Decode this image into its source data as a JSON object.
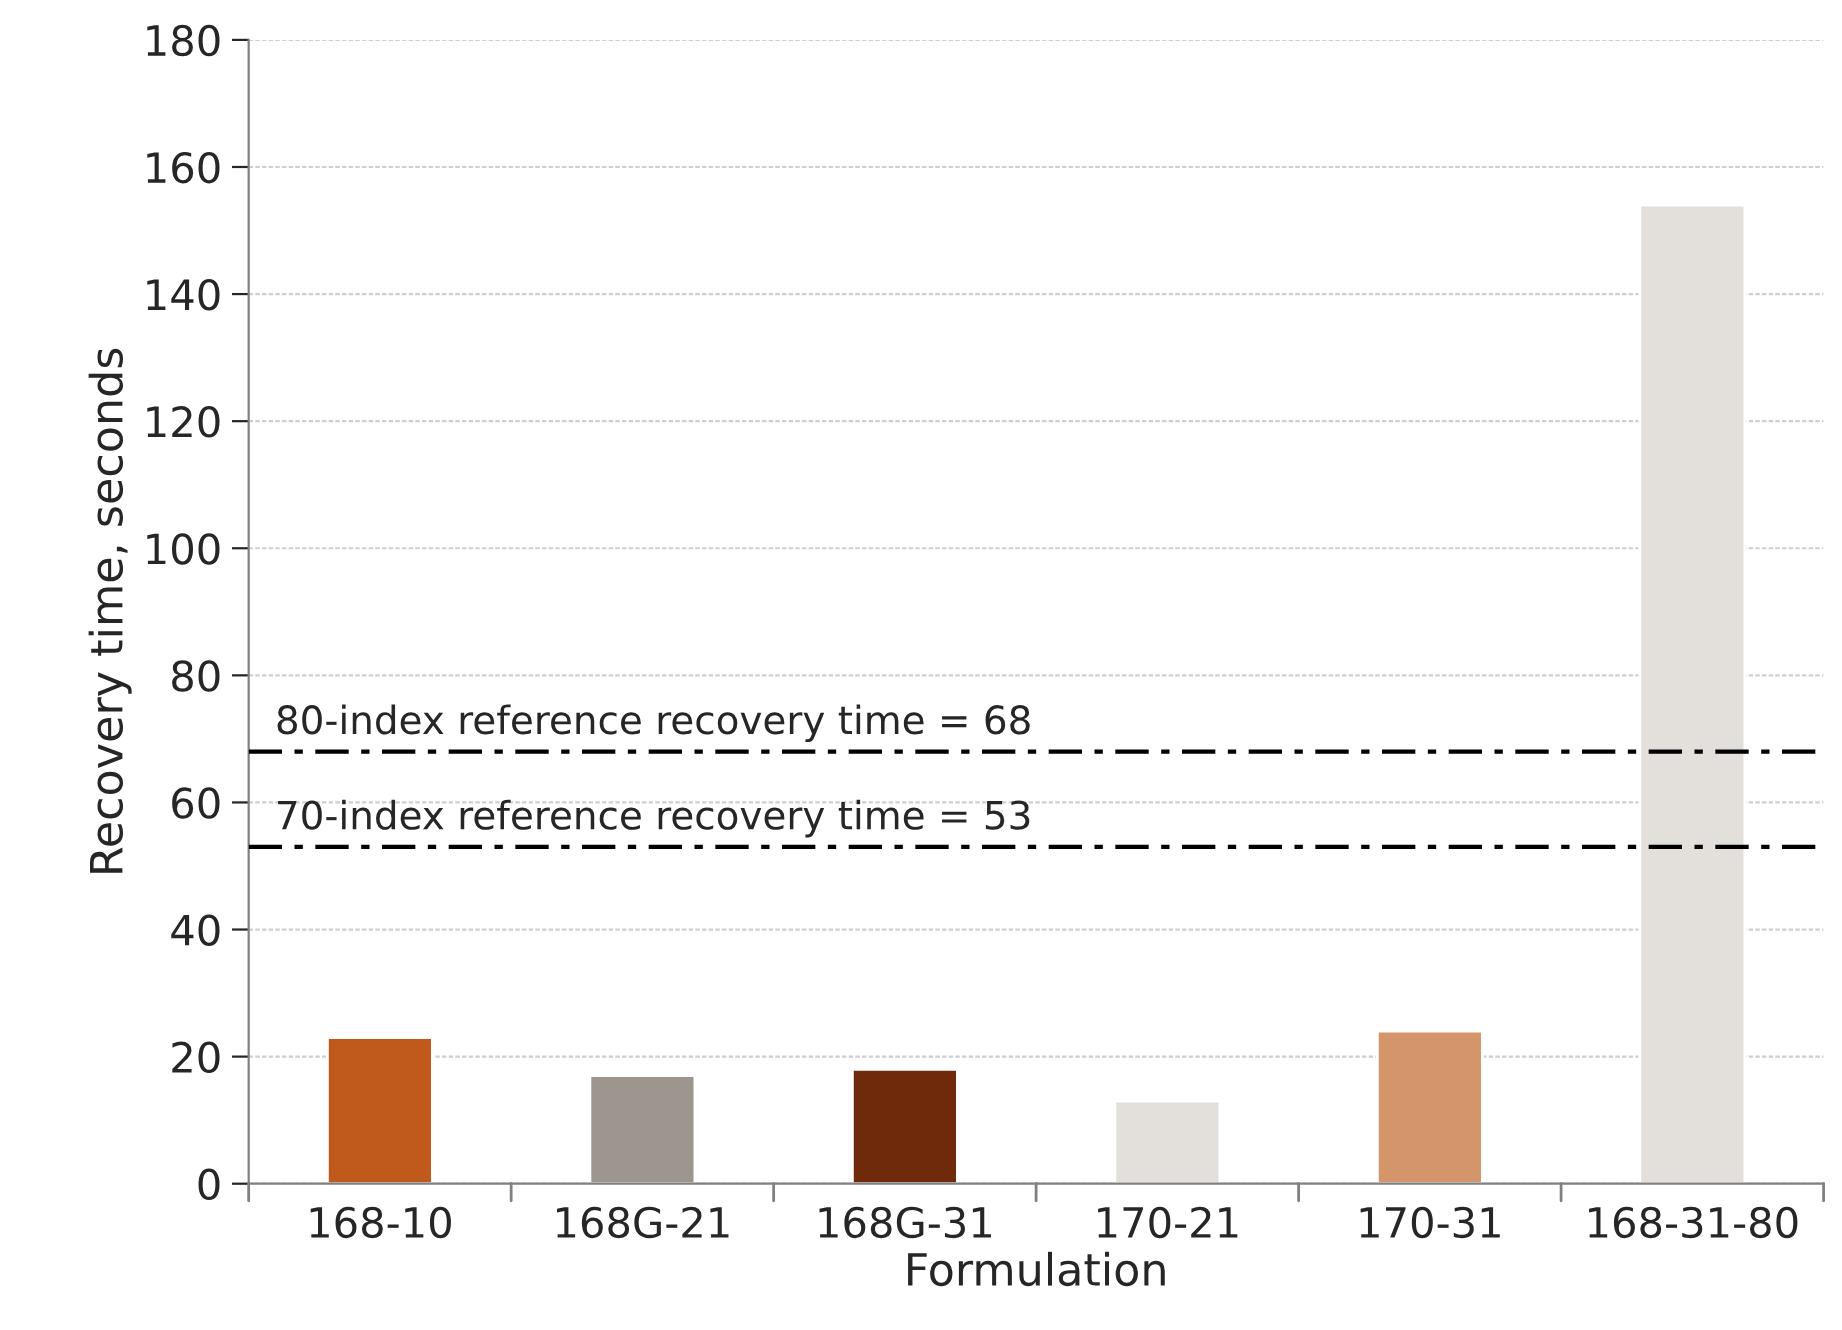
{
  "chart_data": {
    "type": "bar",
    "xlabel": "Formulation",
    "ylabel": "Recovery time, seconds",
    "categories": [
      "168-10",
      "168G-21",
      "168G-31",
      "170-21",
      "170-31",
      "168-31-80"
    ],
    "values": [
      23,
      17,
      18,
      13,
      24,
      154
    ],
    "colors": [
      "#c05a1c",
      "#9c968f",
      "#6e2a0a",
      "#e3e0dc",
      "#d4956a",
      "#e3e0dc"
    ],
    "ylim": [
      0,
      180
    ],
    "yticks": [
      0,
      20,
      40,
      60,
      80,
      100,
      120,
      140,
      160,
      180
    ],
    "grid": "y",
    "ref_lines": [
      {
        "axis": "y",
        "value": 68,
        "label": "80-index reference recovery time = 68",
        "color": "#000000",
        "line_style": "dashdot"
      },
      {
        "axis": "y",
        "value": 53,
        "label": "70-index reference recovery time = 53",
        "color": "#000000",
        "line_style": "dashdot"
      }
    ]
  }
}
